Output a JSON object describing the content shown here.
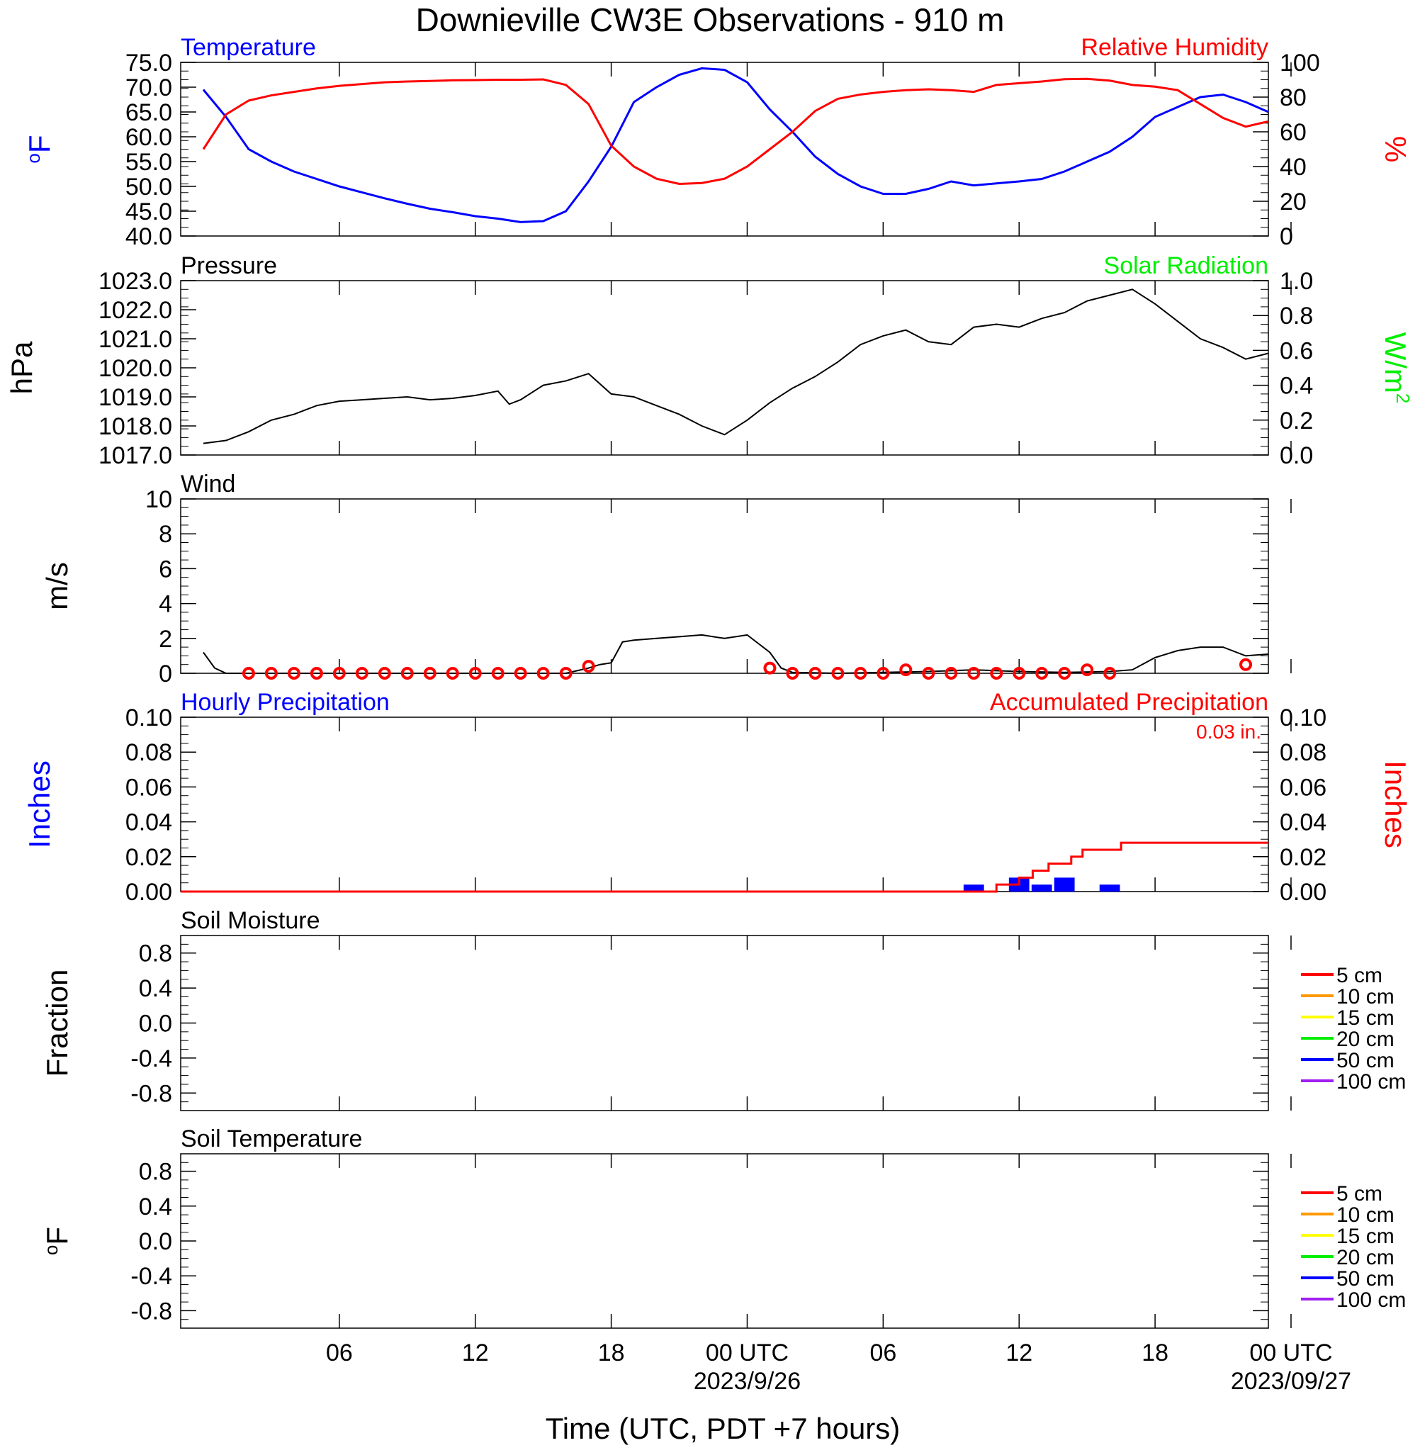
{
  "title": "Downieville CW3E Observations - 910 m",
  "xlabel": "Time (UTC, PDT +7 hours)",
  "time_axis": {
    "range_hours": [
      -1,
      47
    ],
    "tick_hours": [
      6,
      12,
      18,
      24,
      30,
      36,
      42,
      48
    ],
    "tick_labels": [
      "06",
      "12",
      "18",
      "00 UTC",
      "06",
      "12",
      "18",
      "00 UTC"
    ],
    "date_labels": [
      {
        "hour": 24,
        "text": "2023/9/26"
      },
      {
        "hour": 48,
        "text": "2023/09/27"
      }
    ]
  },
  "colors": {
    "blue": "#0000ff",
    "red": "#ff0000",
    "green": "#00ee00",
    "black": "#000000",
    "orange": "#ff9900",
    "yellow": "#ffff00",
    "purple": "#a020f0"
  },
  "chart_data": [
    {
      "panel": "temperature_rh",
      "type": "line",
      "left_title": "Temperature",
      "right_title": "Relative Humidity",
      "left_ylabel": "oF",
      "right_ylabel": "%",
      "left_ylim": [
        40,
        75
      ],
      "left_ticks": [
        "75.0",
        "70.0",
        "65.0",
        "60.0",
        "55.0",
        "50.0",
        "45.0",
        "40.0"
      ],
      "right_ylim": [
        0,
        100
      ],
      "right_ticks": [
        "100",
        "80",
        "60",
        "40",
        "20",
        "0"
      ],
      "series": [
        {
          "name": "Temperature",
          "axis": "left",
          "color": "#0000ff",
          "x": [
            0,
            1,
            2,
            3,
            4,
            5,
            6,
            7,
            8,
            9,
            10,
            11,
            12,
            13,
            14,
            15,
            16,
            17,
            18,
            19,
            20,
            21,
            22,
            23,
            24,
            25,
            26,
            27,
            28,
            29,
            30,
            31,
            32,
            33,
            34,
            35,
            36,
            37,
            38,
            39,
            40,
            41,
            42,
            43,
            44,
            45,
            46,
            47
          ],
          "y": [
            69.5,
            64,
            57.5,
            55,
            53,
            51.5,
            50,
            48.8,
            47.6,
            46.5,
            45.5,
            44.8,
            44,
            43.5,
            42.8,
            43,
            45,
            51,
            58,
            67,
            70,
            72.5,
            73.8,
            73.5,
            71,
            65.5,
            61,
            56,
            52.5,
            50,
            48.5,
            48.5,
            49.5,
            51,
            50.2,
            50.6,
            51,
            51.5,
            53,
            55,
            57,
            60,
            64,
            66,
            68,
            68.5,
            67,
            65
          ]
        },
        {
          "name": "Relative Humidity",
          "axis": "right",
          "color": "#ff0000",
          "x": [
            0,
            1,
            2,
            3,
            4,
            5,
            6,
            7,
            8,
            9,
            10,
            11,
            12,
            13,
            14,
            15,
            16,
            17,
            18,
            19,
            20,
            21,
            22,
            23,
            24,
            25,
            26,
            27,
            28,
            29,
            30,
            31,
            32,
            33,
            34,
            35,
            36,
            37,
            38,
            39,
            40,
            41,
            42,
            43,
            44,
            45,
            46,
            47
          ],
          "y": [
            50,
            70,
            78,
            81,
            83,
            85,
            86.5,
            87.5,
            88.5,
            89,
            89.3,
            89.7,
            89.8,
            90,
            90,
            90.2,
            87,
            76,
            52,
            40,
            33,
            30,
            30.5,
            33,
            40,
            50,
            60,
            72,
            79,
            81.5,
            83,
            84,
            84.5,
            84,
            83,
            87,
            88,
            89,
            90.3,
            90.5,
            89.5,
            87,
            86,
            84,
            76,
            68,
            63,
            66
          ]
        }
      ]
    },
    {
      "panel": "pressure",
      "type": "line",
      "left_title": "Pressure",
      "right_title": "Solar Radiation",
      "left_ylabel": "hPa",
      "right_ylabel": "W/m2",
      "left_ylim": [
        1017,
        1023
      ],
      "left_ticks": [
        "1023.0",
        "1022.0",
        "1021.0",
        "1020.0",
        "1019.0",
        "1018.0",
        "1017.0"
      ],
      "right_ylim": [
        0,
        1
      ],
      "right_ticks": [
        "1.0",
        "0.8",
        "0.6",
        "0.4",
        "0.2",
        "0.0"
      ],
      "series": [
        {
          "name": "Pressure",
          "axis": "left",
          "color": "#000000",
          "x": [
            0,
            1,
            2,
            3,
            4,
            5,
            6,
            7,
            8,
            9,
            10,
            11,
            12,
            13,
            13.5,
            14,
            15,
            16,
            17,
            18,
            19,
            20,
            21,
            22,
            23,
            24,
            25,
            26,
            27,
            28,
            29,
            30,
            31,
            32,
            33,
            34,
            35,
            36,
            37,
            38,
            39,
            40,
            41,
            42,
            43,
            44,
            45,
            46,
            47
          ],
          "y": [
            1017.4,
            1017.5,
            1017.8,
            1018.2,
            1018.4,
            1018.7,
            1018.85,
            1018.9,
            1018.95,
            1019.0,
            1018.9,
            1018.95,
            1019.05,
            1019.2,
            1018.75,
            1018.9,
            1019.4,
            1019.55,
            1019.8,
            1019.1,
            1019.0,
            1018.7,
            1018.4,
            1018.0,
            1017.7,
            1018.2,
            1018.8,
            1019.3,
            1019.7,
            1020.2,
            1020.8,
            1021.1,
            1021.3,
            1020.9,
            1020.8,
            1021.4,
            1021.5,
            1021.4,
            1021.7,
            1021.9,
            1022.3,
            1022.5,
            1022.7,
            1022.2,
            1021.6,
            1021.0,
            1020.7,
            1020.3,
            1020.5
          ]
        }
      ]
    },
    {
      "panel": "wind",
      "type": "line",
      "left_title": "Wind",
      "left_ylabel": "m/s",
      "left_ylim": [
        0,
        10
      ],
      "left_ticks": [
        "10",
        "8",
        "6",
        "4",
        "2",
        "0"
      ],
      "series": [
        {
          "name": "Wind speed",
          "axis": "left",
          "color": "#000000",
          "x": [
            0,
            0.5,
            1,
            2,
            4,
            8,
            12,
            16,
            17,
            17.5,
            18,
            18.5,
            19,
            20,
            21,
            22,
            23,
            24,
            25,
            25.5,
            26,
            28,
            30,
            32,
            34,
            36,
            38,
            40,
            41,
            42,
            43,
            44,
            45,
            46,
            47
          ],
          "y": [
            1.2,
            0.3,
            0,
            0,
            0,
            0,
            0,
            0,
            0.3,
            0.5,
            0.6,
            1.8,
            1.9,
            2.0,
            2.1,
            2.2,
            2.0,
            2.2,
            1.2,
            0.3,
            0.05,
            0,
            0.05,
            0.1,
            0.2,
            0.1,
            0.05,
            0.1,
            0.2,
            0.9,
            1.3,
            1.5,
            1.5,
            1.0,
            1.1
          ]
        },
        {
          "name": "Hourly wind station",
          "axis": "left",
          "color": "#ff0000",
          "x": [
            2,
            3,
            4,
            5,
            6,
            7,
            8,
            9,
            10,
            11,
            12,
            13,
            14,
            15,
            16,
            17,
            25,
            26,
            27,
            28,
            29,
            30,
            31,
            32,
            33,
            34,
            35,
            36,
            37,
            38,
            39,
            40,
            46
          ],
          "y": [
            0,
            0,
            0,
            0,
            0,
            0,
            0,
            0,
            0,
            0,
            0,
            0,
            0,
            0,
            0,
            0.4,
            0.3,
            0,
            0,
            0,
            0,
            0,
            0.2,
            0,
            0,
            0,
            0,
            0,
            0,
            0,
            0.2,
            0,
            0.5
          ]
        }
      ]
    },
    {
      "panel": "precipitation",
      "type": "bar",
      "left_title": "Hourly Precipitation",
      "right_title": "Accumulated Precipitation",
      "annotation": "0.03 in.",
      "left_ylabel": "Inches",
      "right_ylabel": "Inches",
      "left_ylim": [
        0,
        0.1
      ],
      "left_ticks": [
        "0.10",
        "0.08",
        "0.06",
        "0.04",
        "0.02",
        "0.00"
      ],
      "right_ylim": [
        0,
        0.1
      ],
      "right_ticks": [
        "0.10",
        "0.08",
        "0.06",
        "0.04",
        "0.02",
        "0.00"
      ],
      "series": [
        {
          "name": "Hourly Precipitation",
          "axis": "left",
          "color": "#0000ff",
          "x": [
            34,
            36,
            37,
            38,
            40
          ],
          "y": [
            0.004,
            0.008,
            0.004,
            0.008,
            0.004
          ]
        },
        {
          "name": "Accumulated Precipitation",
          "axis": "right",
          "color": "#ff0000",
          "x": [
            -1,
            34,
            35,
            36,
            36.6,
            37.3,
            38.3,
            38.8,
            40.5,
            47
          ],
          "y": [
            0,
            0.0,
            0.004,
            0.008,
            0.012,
            0.016,
            0.02,
            0.024,
            0.028,
            0.028
          ]
        }
      ]
    },
    {
      "panel": "soil_moisture",
      "type": "line",
      "left_title": "Soil Moisture",
      "left_ylabel": "Fraction",
      "left_ylim": [
        -1,
        1
      ],
      "left_ticks": [
        "0.8",
        "0.4",
        "0.0",
        "-0.4",
        "-0.8"
      ],
      "series": []
    },
    {
      "panel": "soil_temperature",
      "type": "line",
      "left_title": "Soil Temperature",
      "left_ylabel": "oF",
      "left_ylim": [
        -1,
        1
      ],
      "left_ticks": [
        "0.8",
        "0.4",
        "0.0",
        "-0.4",
        "-0.8"
      ],
      "series": []
    }
  ],
  "soil_legend": [
    {
      "label": "5 cm",
      "color": "#ff0000"
    },
    {
      "label": "10 cm",
      "color": "#ff9900"
    },
    {
      "label": "15 cm",
      "color": "#ffff00"
    },
    {
      "label": "20 cm",
      "color": "#00ee00"
    },
    {
      "label": "50 cm",
      "color": "#0000ff"
    },
    {
      "label": "100 cm",
      "color": "#a020f0"
    }
  ]
}
